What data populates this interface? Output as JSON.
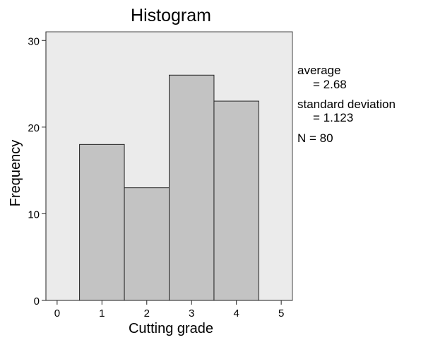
{
  "chart_data": {
    "type": "bar",
    "title": "Histogram",
    "xlabel": "Cutting  grade",
    "ylabel": "Frequency",
    "categories": [
      "1",
      "2",
      "3",
      "4"
    ],
    "bins": [
      {
        "x": 1,
        "value": 18
      },
      {
        "x": 2,
        "value": 13
      },
      {
        "x": 3,
        "value": 26
      },
      {
        "x": 4,
        "value": 23
      }
    ],
    "xlim": [
      -0.25,
      5.25
    ],
    "ylim": [
      0,
      31
    ],
    "x_ticks": [
      "0",
      "1",
      "2",
      "3",
      "4",
      "5"
    ],
    "y_ticks": [
      "0",
      "10",
      "20",
      "30"
    ],
    "grid": false,
    "legend": "none",
    "colors": {
      "plot_background": "#ebebeb",
      "bar_fill": "#c3c3c3",
      "bar_stroke": "#222222",
      "frame": "#444444"
    },
    "stats": {
      "average_label": "average",
      "average_value": "= 2.68",
      "sd_label": "standard deviation",
      "sd_value": "= 1.123",
      "n": "N = 80"
    }
  }
}
